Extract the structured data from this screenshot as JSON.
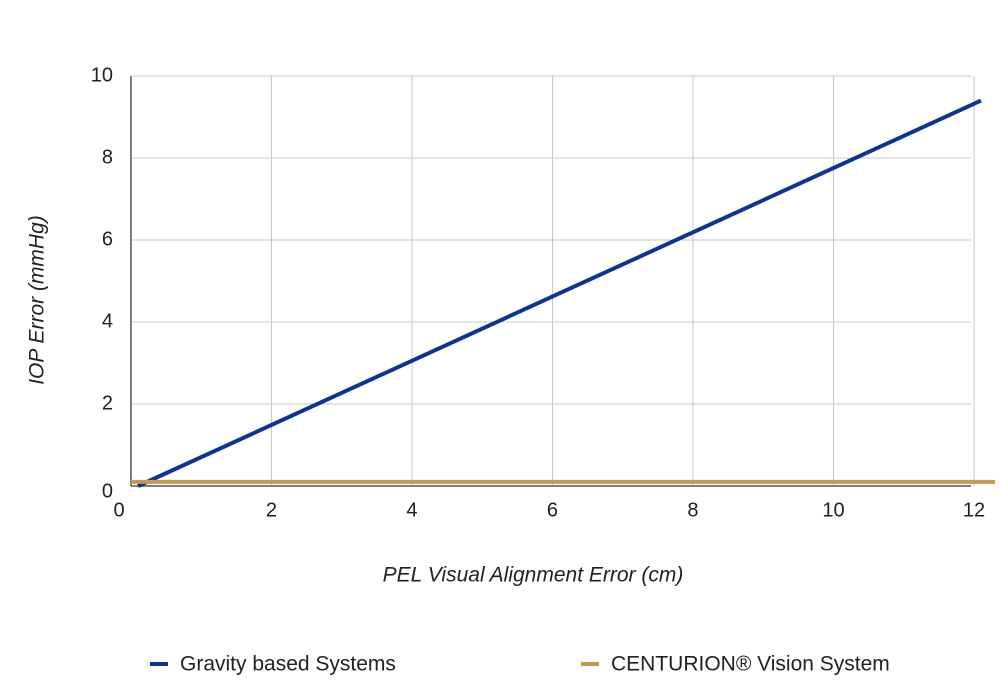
{
  "chart_data": {
    "type": "line",
    "x_label": "PEL Visual Alignment Error (cm)",
    "y_label": "IOP Error (mmHg)",
    "xlim": [
      0,
      12.1
    ],
    "xticks": [
      0,
      2,
      4,
      6,
      8,
      10,
      12
    ],
    "ylim": [
      0,
      10
    ],
    "yticks": [
      0,
      2,
      4,
      6,
      8,
      10
    ],
    "grid": true,
    "legend": "bottom",
    "series": [
      {
        "name": "Gravity based Systems",
        "color": "#0b3592",
        "x": [
          0.1,
          12.1
        ],
        "values": [
          0,
          9.4
        ]
      },
      {
        "name": "CENTURION® Vision System",
        "color": "#c8994a",
        "x": [
          0,
          12.3
        ],
        "values": [
          0.1,
          0.1
        ]
      }
    ]
  }
}
